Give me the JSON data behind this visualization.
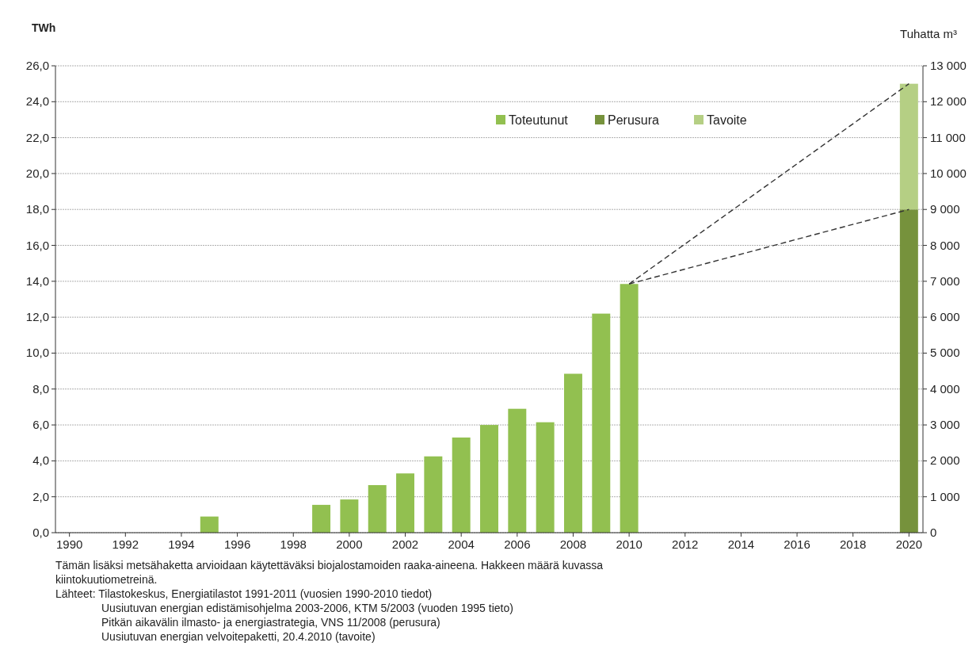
{
  "chart_data": {
    "type": "bar",
    "stacked": true,
    "ylabel": "TWh",
    "y2label": "Tuhatta m³",
    "xlim": [
      1989.5,
      2020.5
    ],
    "xticks": [
      1990,
      1992,
      1994,
      1996,
      1998,
      2000,
      2002,
      2004,
      2006,
      2008,
      2010,
      2012,
      2014,
      2016,
      2018,
      2020
    ],
    "ylim": [
      0,
      26
    ],
    "yticks": [
      {
        "value": 0,
        "label": "0,0"
      },
      {
        "value": 2,
        "label": "2,0"
      },
      {
        "value": 4,
        "label": "4,0"
      },
      {
        "value": 6,
        "label": "6,0"
      },
      {
        "value": 8,
        "label": "8,0"
      },
      {
        "value": 10,
        "label": "10,0"
      },
      {
        "value": 12,
        "label": "12,0"
      },
      {
        "value": 14,
        "label": "14,0"
      },
      {
        "value": 16,
        "label": "16,0"
      },
      {
        "value": 18,
        "label": "18,0"
      },
      {
        "value": 20,
        "label": "20,0"
      },
      {
        "value": 22,
        "label": "22,0"
      },
      {
        "value": 24,
        "label": "24,0"
      },
      {
        "value": 26,
        "label": "26,0"
      }
    ],
    "y2lim": [
      0,
      13000
    ],
    "y2ticks": [
      0,
      {
        "value": 1000,
        "label": "1 000"
      },
      {
        "value": 2000,
        "label": "2 000"
      },
      {
        "value": 3000,
        "label": "3 000"
      },
      {
        "value": 4000,
        "label": "4 000"
      },
      {
        "value": 5000,
        "label": "5 000"
      },
      {
        "value": 6000,
        "label": "6 000"
      },
      {
        "value": 7000,
        "label": "7 000"
      },
      {
        "value": 8000,
        "label": "8 000"
      },
      {
        "value": 9000,
        "label": "9 000"
      },
      {
        "value": 10000,
        "label": "10 000"
      },
      {
        "value": 11000,
        "label": "11 000"
      },
      {
        "value": 12000,
        "label": "12 000"
      },
      {
        "value": 13000,
        "label": "13 000"
      }
    ],
    "grid": "y",
    "legend": "top right",
    "x": [
      1995,
      1999,
      2000,
      2001,
      2002,
      2003,
      2004,
      2005,
      2006,
      2007,
      2008,
      2009,
      2010,
      2020
    ],
    "series": [
      {
        "name": "Toteutunut",
        "color": "#92c050",
        "values": [
          0.9,
          1.55,
          1.85,
          2.65,
          3.3,
          4.25,
          5.3,
          6.0,
          6.9,
          6.15,
          8.85,
          12.2,
          13.85,
          null
        ]
      },
      {
        "name": "Perusura",
        "color": "#76923c",
        "values": [
          null,
          null,
          null,
          null,
          null,
          null,
          null,
          null,
          null,
          null,
          null,
          null,
          null,
          18.0
        ]
      },
      {
        "name": "Tavoite",
        "color": "#b5cf84",
        "values": [
          null,
          null,
          null,
          null,
          null,
          null,
          null,
          null,
          null,
          null,
          null,
          null,
          null,
          7.0
        ]
      },
      {
        "type": "line",
        "color": "#333333",
        "line_style": "dashed",
        "marker": "none",
        "values": [
          null,
          null,
          null,
          null,
          null,
          null,
          null,
          null,
          null,
          null,
          null,
          null,
          13.85,
          25.0
        ]
      },
      {
        "type": "line",
        "color": "#333333",
        "line_style": "dashed",
        "marker": "none",
        "values": [
          null,
          null,
          null,
          null,
          null,
          null,
          null,
          null,
          null,
          null,
          null,
          null,
          13.85,
          18.0
        ]
      }
    ],
    "annotations": [
      "Tämän lisäksi metsähaketta arvioidaan käytettäväksi biojalostamoiden raaka-aineena. Hakkeen määrä kuvassa kiintokuutiometreinä.",
      "Lähteet: Tilastokeskus, Energiatilastot 1991-2011 (vuosien 1990-2010 tiedot)",
      "Uusiutuvan energian edistämisohjelma 2003-2006, KTM 5/2003 (vuoden 1995 tieto)",
      "Pitkän aikavälin ilmasto- ja energiastrategia, VNS 11/2008 (perusura)",
      "Uusiutuvan energian velvoitepaketti, 20.4.2010 (tavoite)"
    ]
  }
}
